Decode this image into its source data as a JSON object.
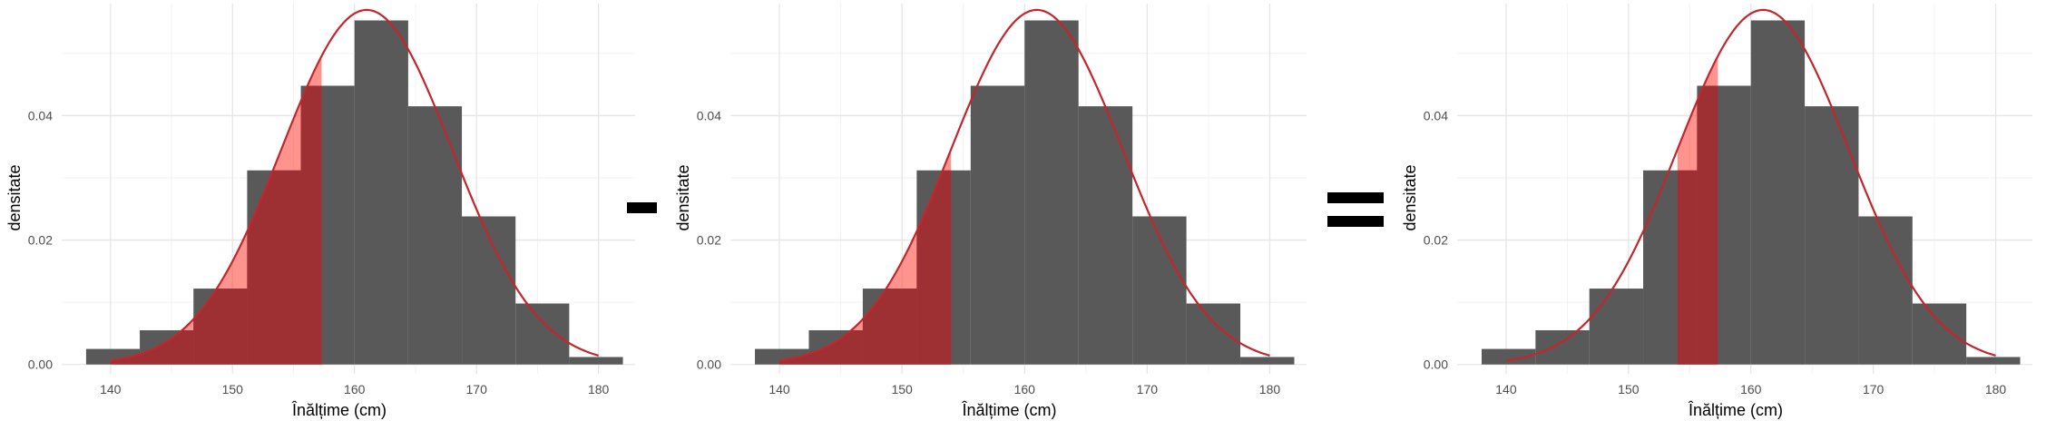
{
  "chart_data": [
    {
      "type": "bar",
      "operator_after": "minus",
      "xlabel": "Înălțime (cm)",
      "ylabel": "densitate",
      "xlim": [
        136,
        183
      ],
      "ylim": [
        -0.0015,
        0.058
      ],
      "xticks": [
        "140",
        "150",
        "160",
        "170",
        "180"
      ],
      "yticks": [
        "0.00",
        "0.02",
        "0.04"
      ],
      "grid": true,
      "bins": [
        {
          "x0": 138,
          "x1": 142.4,
          "density": 0.0025
        },
        {
          "x0": 142.4,
          "x1": 146.8,
          "density": 0.0055
        },
        {
          "x0": 146.8,
          "x1": 151.2,
          "density": 0.0122
        },
        {
          "x0": 151.2,
          "x1": 155.6,
          "density": 0.0312
        },
        {
          "x0": 155.6,
          "x1": 160.0,
          "density": 0.0448
        },
        {
          "x0": 160.0,
          "x1": 164.4,
          "density": 0.0553
        },
        {
          "x0": 164.4,
          "x1": 168.8,
          "density": 0.0415
        },
        {
          "x0": 168.8,
          "x1": 173.2,
          "density": 0.0238
        },
        {
          "x0": 173.2,
          "x1": 177.6,
          "density": 0.0098
        },
        {
          "x0": 177.6,
          "x1": 182.0,
          "density": 0.0012
        }
      ],
      "normal_curve": {
        "mean": 161,
        "sd": 7,
        "x_range": [
          140,
          180
        ]
      },
      "shaded_region": [
        138,
        157.3
      ],
      "colors": {
        "bar": "#595959",
        "curve": "#c1272d",
        "shade_fill": "#ff3b30",
        "shade_fill_opacity": 0.55,
        "overlap": "#9e2f33"
      }
    },
    {
      "type": "bar",
      "operator_after": "equals",
      "xlabel": "Înălțime (cm)",
      "ylabel": "densitate",
      "xlim": [
        136,
        183
      ],
      "ylim": [
        -0.0015,
        0.058
      ],
      "xticks": [
        "140",
        "150",
        "160",
        "170",
        "180"
      ],
      "yticks": [
        "0.00",
        "0.02",
        "0.04"
      ],
      "grid": true,
      "bins": [
        {
          "x0": 138,
          "x1": 142.4,
          "density": 0.0025
        },
        {
          "x0": 142.4,
          "x1": 146.8,
          "density": 0.0055
        },
        {
          "x0": 146.8,
          "x1": 151.2,
          "density": 0.0122
        },
        {
          "x0": 151.2,
          "x1": 155.6,
          "density": 0.0312
        },
        {
          "x0": 155.6,
          "x1": 160.0,
          "density": 0.0448
        },
        {
          "x0": 160.0,
          "x1": 164.4,
          "density": 0.0553
        },
        {
          "x0": 164.4,
          "x1": 168.8,
          "density": 0.0415
        },
        {
          "x0": 168.8,
          "x1": 173.2,
          "density": 0.0238
        },
        {
          "x0": 173.2,
          "x1": 177.6,
          "density": 0.0098
        },
        {
          "x0": 177.6,
          "x1": 182.0,
          "density": 0.0012
        }
      ],
      "normal_curve": {
        "mean": 161,
        "sd": 7,
        "x_range": [
          140,
          180
        ]
      },
      "shaded_region": [
        138,
        154.0
      ],
      "colors": {
        "bar": "#595959",
        "curve": "#c1272d",
        "shade_fill": "#ff3b30",
        "shade_fill_opacity": 0.55,
        "overlap": "#9e2f33"
      }
    },
    {
      "type": "bar",
      "operator_after": "",
      "xlabel": "Înălțime (cm)",
      "ylabel": "densitate",
      "xlim": [
        136,
        183
      ],
      "ylim": [
        -0.0015,
        0.058
      ],
      "xticks": [
        "140",
        "150",
        "160",
        "170",
        "180"
      ],
      "yticks": [
        "0.00",
        "0.02",
        "0.04"
      ],
      "grid": true,
      "bins": [
        {
          "x0": 138,
          "x1": 142.4,
          "density": 0.0025
        },
        {
          "x0": 142.4,
          "x1": 146.8,
          "density": 0.0055
        },
        {
          "x0": 146.8,
          "x1": 151.2,
          "density": 0.0122
        },
        {
          "x0": 151.2,
          "x1": 155.6,
          "density": 0.0312
        },
        {
          "x0": 155.6,
          "x1": 160.0,
          "density": 0.0448
        },
        {
          "x0": 160.0,
          "x1": 164.4,
          "density": 0.0553
        },
        {
          "x0": 164.4,
          "x1": 168.8,
          "density": 0.0415
        },
        {
          "x0": 168.8,
          "x1": 173.2,
          "density": 0.0238
        },
        {
          "x0": 173.2,
          "x1": 177.6,
          "density": 0.0098
        },
        {
          "x0": 177.6,
          "x1": 182.0,
          "density": 0.0012
        }
      ],
      "normal_curve": {
        "mean": 161,
        "sd": 7,
        "x_range": [
          140,
          180
        ]
      },
      "shaded_region": [
        154.0,
        157.3
      ],
      "colors": {
        "bar": "#595959",
        "curve": "#c1272d",
        "shade_fill": "#ff3b30",
        "shade_fill_opacity": 0.55,
        "overlap": "#9e2f33"
      }
    }
  ]
}
